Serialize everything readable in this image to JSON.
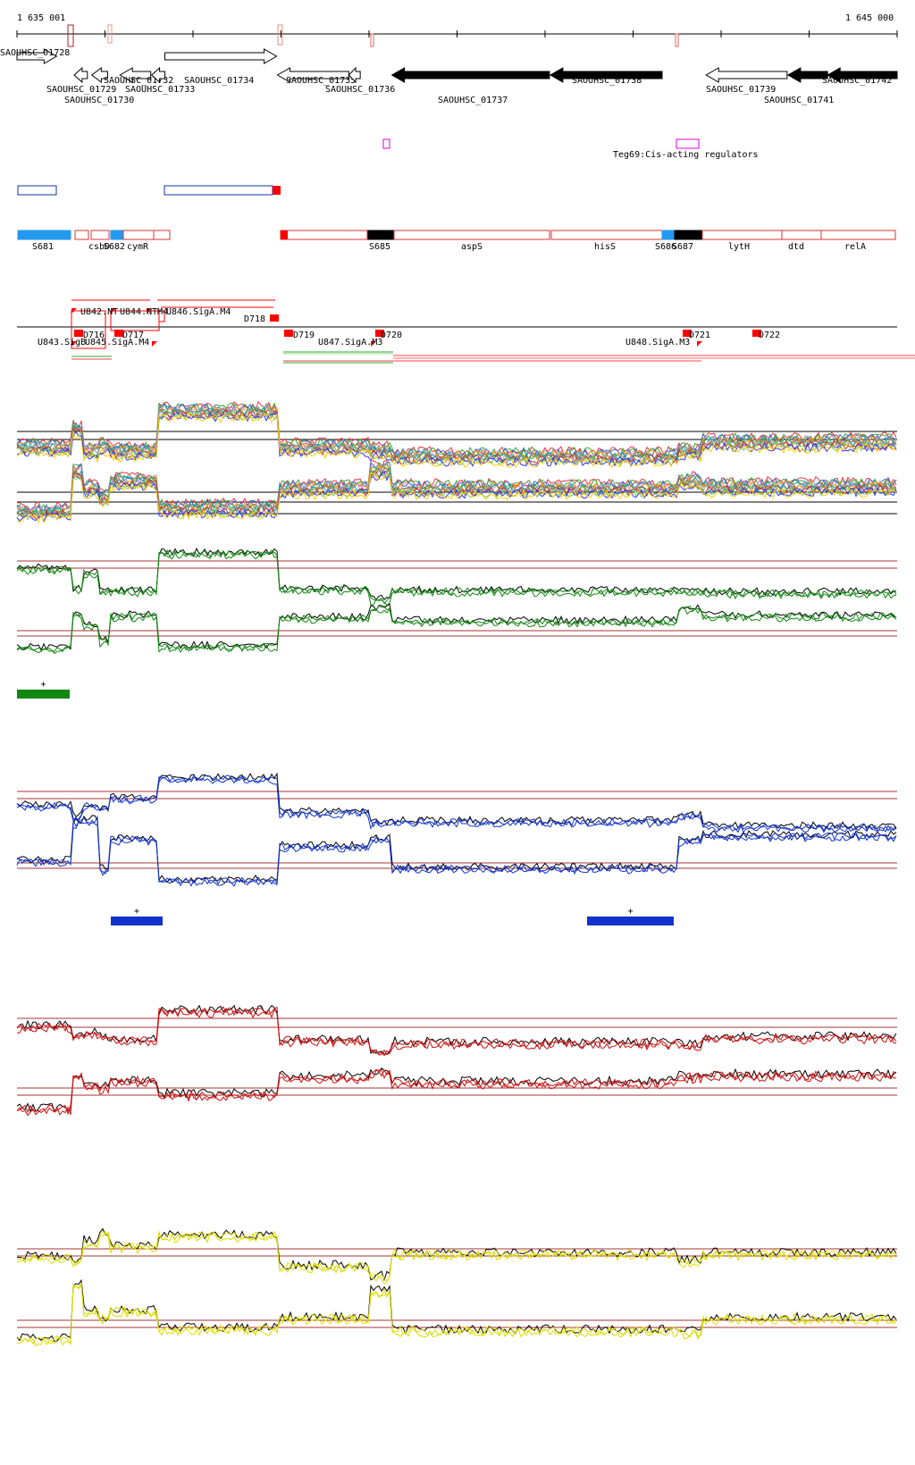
{
  "coords": {
    "start": "1 635 001",
    "end": "1 645 000"
  },
  "genes": [
    {
      "name": "SAOUHSC_01728",
      "strand": "+",
      "filled": false,
      "from": 1635000,
      "to": 1635450
    },
    {
      "name": "SAOUHSC_01729",
      "strand": "-",
      "filled": false,
      "from": 1635650,
      "to": 1635800
    },
    {
      "name": "SAOUHSC_01730",
      "strand": "-",
      "filled": false,
      "from": 1635850,
      "to": 1636030
    },
    {
      "name": "SAOUHSC_01732",
      "strand": "-",
      "filled": false,
      "from": 1636170,
      "to": 1636520
    },
    {
      "name": "SAOUHSC_01733",
      "strand": "-",
      "filled": false,
      "from": 1636530,
      "to": 1636680
    },
    {
      "name": "SAOUHSC_01734",
      "strand": "+",
      "filled": false,
      "from": 1636680,
      "to": 1637950
    },
    {
      "name": "SAOUHSC_01735",
      "strand": "-",
      "filled": false,
      "from": 1637960,
      "to": 1638770
    },
    {
      "name": "SAOUHSC_01736",
      "strand": "-",
      "filled": false,
      "from": 1638770,
      "to": 1638900
    },
    {
      "name": "SAOUHSC_01737",
      "strand": "-",
      "filled": true,
      "from": 1639260,
      "to": 1641050
    },
    {
      "name": "SAOUHSC_01738",
      "strand": "-",
      "filled": true,
      "from": 1641060,
      "to": 1642330
    },
    {
      "name": "SAOUHSC_01739",
      "strand": "-",
      "filled": false,
      "from": 1642830,
      "to": 1643750
    },
    {
      "name": "SAOUHSC_01741",
      "strand": "-",
      "filled": true,
      "from": 1643760,
      "to": 1644210
    },
    {
      "name": "SAOUHSC_01742",
      "strand": "-",
      "filled": true,
      "from": 1644210,
      "to": 1645000
    }
  ],
  "regulator_label": "Teg69:Cis-acting regulators",
  "segments": [
    {
      "label": "S681"
    },
    {
      "label": "csbD"
    },
    {
      "label": "S682"
    },
    {
      "label": "cymR"
    },
    {
      "label": "S685"
    },
    {
      "label": "aspS"
    },
    {
      "label": "hisS"
    },
    {
      "label": "S686"
    },
    {
      "label": "S687"
    },
    {
      "label": "lytH"
    },
    {
      "label": "dtd"
    },
    {
      "label": "relA"
    }
  ],
  "features_up": [
    {
      "label": "U842.NT"
    },
    {
      "label": "U844.NT"
    },
    {
      "label": "M4"
    },
    {
      "label": "U846.SigA.M4"
    },
    {
      "label": "D718"
    }
  ],
  "features_down": [
    {
      "label": "D716"
    },
    {
      "label": "D717"
    },
    {
      "label": "D719"
    },
    {
      "label": "D720"
    },
    {
      "label": "D721"
    },
    {
      "label": "D722"
    },
    {
      "label": "U843.SigB"
    },
    {
      "label": "U845.SigA.M4"
    },
    {
      "label": "U847.SigA.M3"
    },
    {
      "label": "U848.SigA.M3"
    }
  ],
  "plus_marks": [
    "+",
    "+",
    "+"
  ],
  "colors": {
    "green": "#118811",
    "blue": "#1133cc",
    "red": "#cc1111",
    "yellow": "#dddd00",
    "accent": "#ff0000",
    "light_blue": "#2299ee"
  }
}
